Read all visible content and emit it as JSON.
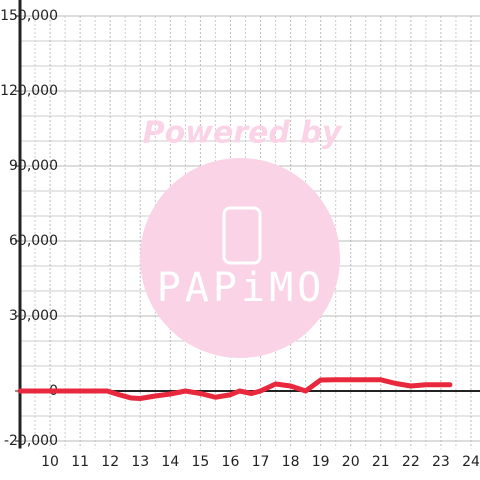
{
  "chart_data": {
    "type": "line",
    "watermark": [
      "Powered by",
      "PAPiMO"
    ],
    "x": [
      9,
      11.9,
      12.3,
      12.7,
      13,
      13.5,
      14,
      14.5,
      15,
      15.5,
      16,
      16.3,
      16.7,
      17,
      17.5,
      18,
      18.5,
      19,
      19.5,
      20,
      21,
      21.5,
      22,
      22.5,
      23,
      23.3
    ],
    "series": [
      {
        "color": "#e8283c",
        "values": [
          0,
          0,
          -1500,
          -2800,
          -3000,
          -2000,
          -1200,
          0,
          -1000,
          -2500,
          -1500,
          0,
          -1000,
          0,
          2800,
          2000,
          0,
          4400,
          4500,
          4500,
          4500,
          3000,
          2000,
          2500,
          2500,
          2500
        ]
      }
    ],
    "xlim": [
      9,
      24.3
    ],
    "xticks": [
      10,
      11,
      12,
      13,
      14,
      15,
      16,
      17,
      18,
      19,
      20,
      21,
      22,
      23,
      24
    ],
    "xminorticks": [
      9.5,
      10.5,
      11.5,
      12.5,
      13.5,
      14.5,
      15.5,
      16.5,
      17.5,
      18.5,
      19.5,
      20.5,
      21.5,
      22.5,
      23.5
    ],
    "ylim": [
      -23000,
      150000
    ],
    "yticks": [
      {
        "value": -20000,
        "label": "-20,000"
      },
      0,
      {
        "value": 30000,
        "label": "30,000"
      },
      {
        "value": 60000,
        "label": "60,000"
      },
      {
        "value": 90000,
        "label": "90,000"
      },
      {
        "value": 120000,
        "label": "120,000"
      },
      {
        "value": 150000,
        "label": "150,000"
      }
    ],
    "yminorticks": [
      -10000,
      10000,
      20000,
      40000,
      50000,
      70000,
      80000,
      100000,
      110000,
      130000,
      140000
    ],
    "grid": true
  }
}
